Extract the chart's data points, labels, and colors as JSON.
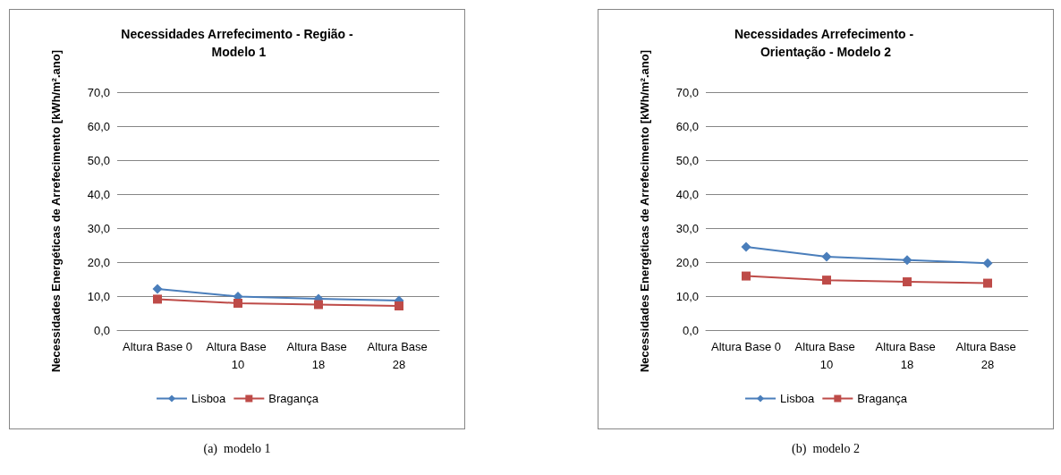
{
  "chart_data": [
    {
      "type": "line",
      "title": "Necessidades Arrefecimento - Região - Modelo 1",
      "ylabel": "Necessidades Energéticas de Arrefecimento [kWh/m².ano]",
      "categories": [
        "Altura Base 0",
        "Altura Base 10",
        "Altura Base 18",
        "Altura Base 28"
      ],
      "series": [
        {
          "name": "Lisboa",
          "color": "#4a7ebb",
          "marker": "diamond",
          "values": [
            12.1,
            9.9,
            9.2,
            8.7
          ]
        },
        {
          "name": "Bragança",
          "color": "#be4b48",
          "marker": "square",
          "values": [
            9.1,
            7.9,
            7.5,
            7.1
          ]
        }
      ],
      "ylim": [
        0,
        70
      ],
      "yticks": [
        {
          "value": 0,
          "label": "0,0"
        },
        {
          "value": 10,
          "label": "10,0"
        },
        {
          "value": 20,
          "label": "20,0"
        },
        {
          "value": 30,
          "label": "30,0"
        },
        {
          "value": 40,
          "label": "40,0"
        },
        {
          "value": 50,
          "label": "50,0"
        },
        {
          "value": 60,
          "label": "60,0"
        },
        {
          "value": 70,
          "label": "70,0"
        }
      ],
      "grid": "y",
      "legend": "bottom",
      "annotations": [
        "(a)  modelo 1"
      ]
    },
    {
      "type": "line",
      "title": "Necessidades Arrefecimento - Orientação - Modelo 2",
      "ylabel": "Necessidades Energéticas de Arrefecimento [kWh/m².ano]",
      "categories": [
        "Altura Base 0",
        "Altura Base 10",
        "Altura Base 18",
        "Altura Base 28"
      ],
      "series": [
        {
          "name": "Lisboa",
          "color": "#4a7ebb",
          "marker": "diamond",
          "values": [
            24.5,
            21.6,
            20.6,
            19.7
          ]
        },
        {
          "name": "Bragança",
          "color": "#be4b48",
          "marker": "square",
          "values": [
            15.9,
            14.7,
            14.2,
            13.8
          ]
        }
      ],
      "ylim": [
        0,
        70
      ],
      "yticks": [
        {
          "value": 0,
          "label": "0,0"
        },
        {
          "value": 10,
          "label": "10,0"
        },
        {
          "value": 20,
          "label": "20,0"
        },
        {
          "value": 30,
          "label": "30,0"
        },
        {
          "value": 40,
          "label": "40,0"
        },
        {
          "value": 50,
          "label": "50,0"
        },
        {
          "value": 60,
          "label": "60,0"
        },
        {
          "value": 70,
          "label": "70,0"
        }
      ],
      "grid": "y",
      "legend": "bottom",
      "annotations": [
        "(b)  modelo 2"
      ]
    }
  ]
}
